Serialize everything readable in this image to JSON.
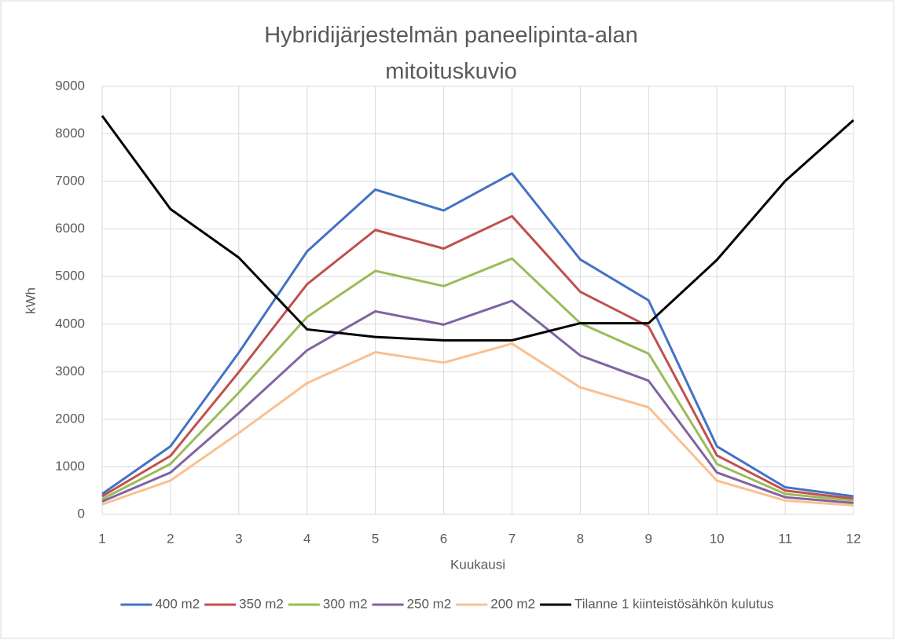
{
  "chart_data": {
    "type": "line",
    "title": "Hybridijärjestelmän paneelipinta-alan mitoituskuvio",
    "xlabel": "Kuukausi",
    "ylabel": "kWh",
    "x": [
      1,
      2,
      3,
      4,
      5,
      6,
      7,
      8,
      9,
      10,
      11,
      12
    ],
    "xlim": [
      1,
      12
    ],
    "xticks": [
      1,
      2,
      3,
      4,
      5,
      6,
      7,
      8,
      9,
      10,
      11,
      12
    ],
    "ylim": [
      0,
      9000
    ],
    "yticks": [
      0,
      1000,
      2000,
      3000,
      4000,
      5000,
      6000,
      7000,
      8000,
      9000
    ],
    "grid": true,
    "legend": "bottom",
    "series": [
      {
        "name": "400 m2",
        "color": "#4472c4",
        "values": [
          430,
          1430,
          3400,
          5530,
          6830,
          6390,
          7170,
          5360,
          4500,
          1430,
          570,
          380
        ]
      },
      {
        "name": "350 m2",
        "color": "#c0504d",
        "values": [
          380,
          1230,
          2990,
          4840,
          5980,
          5590,
          6270,
          4680,
          3950,
          1240,
          500,
          330
        ]
      },
      {
        "name": "300 m2",
        "color": "#9bbb59",
        "values": [
          320,
          1060,
          2560,
          4150,
          5120,
          4800,
          5380,
          4020,
          3380,
          1060,
          430,
          290
        ]
      },
      {
        "name": "250 m2",
        "color": "#8064a2",
        "values": [
          270,
          880,
          2130,
          3450,
          4270,
          3990,
          4490,
          3340,
          2810,
          880,
          360,
          240
        ]
      },
      {
        "name": "200 m2",
        "color": "#fac090",
        "values": [
          210,
          710,
          1710,
          2760,
          3410,
          3190,
          3590,
          2670,
          2250,
          710,
          290,
          190
        ]
      },
      {
        "name": "Tilanne 1 kiinteistösähkön kulutus",
        "color": "#000000",
        "values": [
          8380,
          6420,
          5400,
          3890,
          3730,
          3660,
          3660,
          4020,
          4020,
          5350,
          7010,
          8290
        ]
      }
    ]
  }
}
